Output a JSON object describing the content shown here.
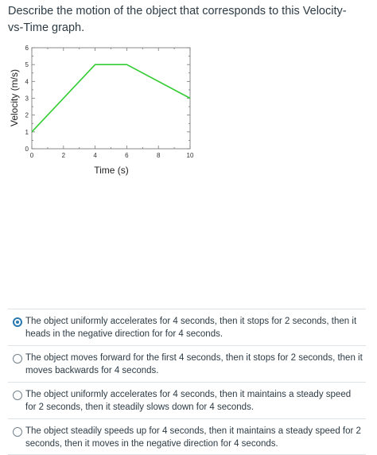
{
  "question": {
    "text": "Describe the motion of the object that corresponds to this Velocity-vs-Time graph."
  },
  "chart_data": {
    "type": "line",
    "xlabel": "Time (s)",
    "ylabel": "Velocity (m/s)",
    "xlim": [
      0,
      10
    ],
    "ylim": [
      0,
      6
    ],
    "xticks": [
      0,
      2,
      4,
      6,
      8,
      10
    ],
    "yticks": [
      0,
      1,
      2,
      3,
      4,
      5,
      6
    ],
    "grid": false,
    "series": [
      {
        "x": [
          0,
          4,
          6,
          10
        ],
        "y": [
          1,
          5,
          5,
          3
        ],
        "color": "#33cc33"
      }
    ]
  },
  "answers": [
    {
      "text": "The object uniformly accelerates for 4 seconds, then it stops for 2 seconds, then it heads in the negative direction for for 4 seconds.",
      "selected": true
    },
    {
      "text": "The object moves forward for the first 4 seconds, then it stops for 2 seconds, then it moves backwards for 4 seconds.",
      "selected": false
    },
    {
      "text": "The object uniformly accelerates for 4 seconds, then it maintains a steady speed for 2 seconds, then it steadily slows down for 4 seconds.",
      "selected": false
    },
    {
      "text": "The object steadily speeds up for 4 seconds, then it maintains a steady speed for 2 seconds, then it moves in the negative direction for 4 seconds.",
      "selected": false
    }
  ],
  "colors": {
    "accent": "#2a7ab0",
    "text": "#2d3b45",
    "divider": "#dde3e7"
  }
}
